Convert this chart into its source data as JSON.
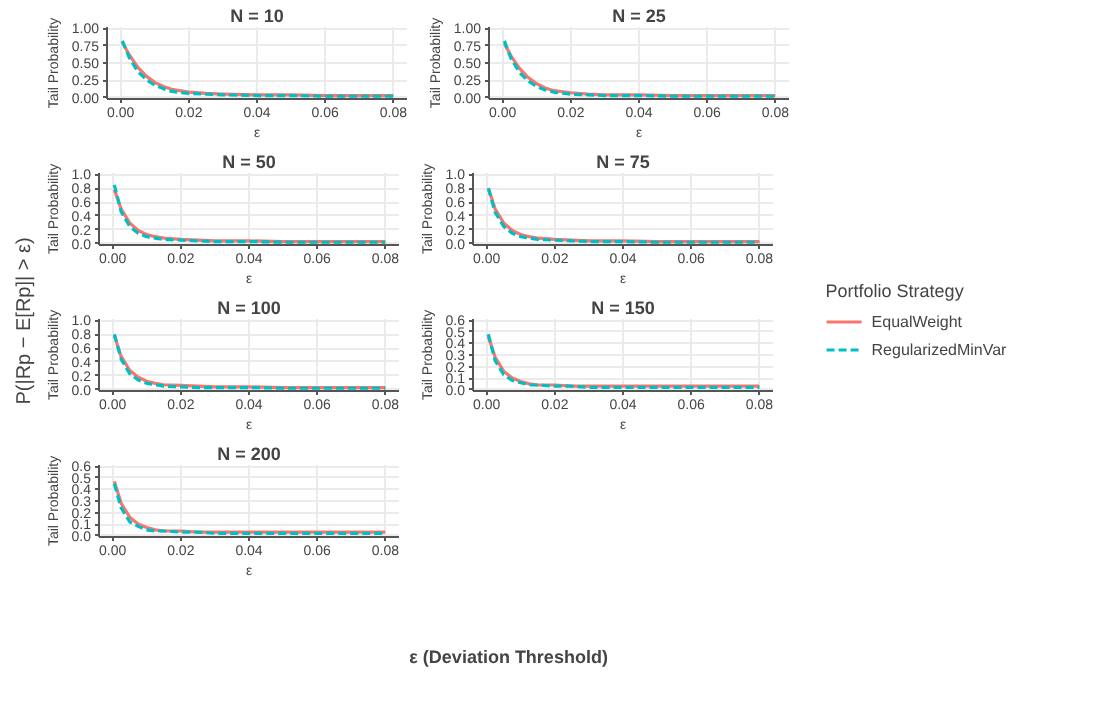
{
  "chart_data": [
    {
      "type": "line",
      "title": "N = 10",
      "xlabel": "ε",
      "ylabel": "Tail Probability",
      "x": [
        0.0005,
        0.0025,
        0.005,
        0.0075,
        0.01,
        0.0125,
        0.015,
        0.02,
        0.025,
        0.03,
        0.04,
        0.05,
        0.06,
        0.07,
        0.08
      ],
      "xlim": [
        -0.004,
        0.084
      ],
      "ylim": [
        -0.02,
        1.02
      ],
      "xticks": [
        {
          "value": 0,
          "label": "0.00"
        },
        {
          "value": 0.02,
          "label": "0.02"
        },
        {
          "value": 0.04,
          "label": "0.04"
        },
        {
          "value": 0.06,
          "label": "0.06"
        },
        {
          "value": 0.08,
          "label": "0.08"
        }
      ],
      "yticks": [
        {
          "value": 0,
          "label": "0.00"
        },
        {
          "value": 0.25,
          "label": "0.25"
        },
        {
          "value": 0.5,
          "label": "0.50"
        },
        {
          "value": 0.75,
          "label": "0.75"
        },
        {
          "value": 1,
          "label": "1.00"
        }
      ],
      "grid": true,
      "series": [
        {
          "color": "#f8766d",
          "line_style": "solid",
          "values": [
            0.8,
            0.62,
            0.44,
            0.31,
            0.22,
            0.16,
            0.12,
            0.08,
            0.06,
            0.05,
            0.04,
            0.04,
            0.03,
            0.03,
            0.03
          ]
        },
        {
          "color": "#00bfc4",
          "line_style": "dashed",
          "values": [
            0.82,
            0.58,
            0.38,
            0.26,
            0.18,
            0.13,
            0.09,
            0.06,
            0.05,
            0.04,
            0.03,
            0.03,
            0.02,
            0.02,
            0.02
          ]
        }
      ]
    },
    {
      "type": "line",
      "title": "N = 25",
      "xlabel": "ε",
      "ylabel": "Tail Probability",
      "x": [
        0.0005,
        0.0025,
        0.005,
        0.0075,
        0.01,
        0.0125,
        0.015,
        0.02,
        0.025,
        0.03,
        0.04,
        0.05,
        0.06,
        0.07,
        0.08
      ],
      "xlim": [
        -0.004,
        0.084
      ],
      "ylim": [
        -0.02,
        1.02
      ],
      "xticks": [
        {
          "value": 0,
          "label": "0.00"
        },
        {
          "value": 0.02,
          "label": "0.02"
        },
        {
          "value": 0.04,
          "label": "0.04"
        },
        {
          "value": 0.06,
          "label": "0.06"
        },
        {
          "value": 0.08,
          "label": "0.08"
        }
      ],
      "yticks": [
        {
          "value": 0,
          "label": "0.00"
        },
        {
          "value": 0.25,
          "label": "0.25"
        },
        {
          "value": 0.5,
          "label": "0.50"
        },
        {
          "value": 0.75,
          "label": "0.75"
        },
        {
          "value": 1,
          "label": "1.00"
        }
      ],
      "grid": true,
      "series": [
        {
          "color": "#f8766d",
          "line_style": "solid",
          "values": [
            0.78,
            0.6,
            0.42,
            0.29,
            0.2,
            0.14,
            0.1,
            0.07,
            0.05,
            0.04,
            0.04,
            0.03,
            0.03,
            0.03,
            0.03
          ]
        },
        {
          "color": "#00bfc4",
          "line_style": "dashed",
          "values": [
            0.82,
            0.56,
            0.36,
            0.24,
            0.16,
            0.11,
            0.08,
            0.05,
            0.04,
            0.03,
            0.03,
            0.02,
            0.02,
            0.02,
            0.02
          ]
        }
      ]
    },
    {
      "type": "line",
      "title": "N = 50",
      "xlabel": "ε",
      "ylabel": "Tail Probability",
      "x": [
        0.0005,
        0.0025,
        0.005,
        0.0075,
        0.01,
        0.0125,
        0.015,
        0.02,
        0.025,
        0.03,
        0.04,
        0.05,
        0.06,
        0.07,
        0.08
      ],
      "xlim": [
        -0.004,
        0.084
      ],
      "ylim": [
        -0.02,
        1.02
      ],
      "xticks": [
        {
          "value": 0,
          "label": "0.00"
        },
        {
          "value": 0.02,
          "label": "0.02"
        },
        {
          "value": 0.04,
          "label": "0.04"
        },
        {
          "value": 0.06,
          "label": "0.06"
        },
        {
          "value": 0.08,
          "label": "0.08"
        }
      ],
      "yticks": [
        {
          "value": 0,
          "label": "0.0"
        },
        {
          "value": 0.2,
          "label": "0.2"
        },
        {
          "value": 0.4,
          "label": "0.4"
        },
        {
          "value": 0.6,
          "label": "0.6"
        },
        {
          "value": 0.8,
          "label": "0.8"
        },
        {
          "value": 1,
          "label": "1.0"
        }
      ],
      "grid": true,
      "series": [
        {
          "color": "#f8766d",
          "line_style": "solid",
          "values": [
            0.78,
            0.5,
            0.3,
            0.19,
            0.13,
            0.1,
            0.08,
            0.06,
            0.05,
            0.04,
            0.04,
            0.03,
            0.03,
            0.03,
            0.03
          ]
        },
        {
          "color": "#00bfc4",
          "line_style": "dashed",
          "values": [
            0.85,
            0.46,
            0.25,
            0.15,
            0.1,
            0.08,
            0.06,
            0.05,
            0.04,
            0.03,
            0.03,
            0.02,
            0.02,
            0.02,
            0.02
          ]
        }
      ]
    },
    {
      "type": "line",
      "title": "N = 75",
      "xlabel": "ε",
      "ylabel": "Tail Probability",
      "legend": "right",
      "legend_title": "Portfolio Strategy",
      "x": [
        0.0005,
        0.0025,
        0.005,
        0.0075,
        0.01,
        0.0125,
        0.015,
        0.02,
        0.025,
        0.03,
        0.04,
        0.05,
        0.06,
        0.07,
        0.08
      ],
      "xlim": [
        -0.004,
        0.084
      ],
      "ylim": [
        -0.02,
        1.02
      ],
      "xticks": [
        {
          "value": 0,
          "label": "0.00"
        },
        {
          "value": 0.02,
          "label": "0.02"
        },
        {
          "value": 0.04,
          "label": "0.04"
        },
        {
          "value": 0.06,
          "label": "0.06"
        },
        {
          "value": 0.08,
          "label": "0.08"
        }
      ],
      "yticks": [
        {
          "value": 0,
          "label": "0.0"
        },
        {
          "value": 0.2,
          "label": "0.2"
        },
        {
          "value": 0.4,
          "label": "0.4"
        },
        {
          "value": 0.6,
          "label": "0.6"
        },
        {
          "value": 0.8,
          "label": "0.8"
        },
        {
          "value": 1,
          "label": "1.0"
        }
      ],
      "grid": true,
      "series": [
        {
          "name": "EqualWeight",
          "color": "#f8766d",
          "line_style": "solid",
          "values": [
            0.8,
            0.5,
            0.3,
            0.19,
            0.13,
            0.1,
            0.08,
            0.06,
            0.05,
            0.04,
            0.04,
            0.03,
            0.03,
            0.03,
            0.03
          ]
        },
        {
          "name": "RegularizedMinVar",
          "color": "#00bfc4",
          "line_style": "dashed",
          "values": [
            0.8,
            0.45,
            0.25,
            0.15,
            0.1,
            0.08,
            0.06,
            0.05,
            0.04,
            0.03,
            0.03,
            0.02,
            0.02,
            0.02,
            0.02
          ]
        }
      ]
    },
    {
      "type": "line",
      "title": "N = 100",
      "xlabel": "ε",
      "ylabel": "Tail Probability",
      "x": [
        0.0005,
        0.0025,
        0.005,
        0.0075,
        0.01,
        0.0125,
        0.015,
        0.02,
        0.025,
        0.03,
        0.04,
        0.05,
        0.06,
        0.07,
        0.08
      ],
      "xlim": [
        -0.004,
        0.084
      ],
      "ylim": [
        -0.02,
        1.02
      ],
      "xticks": [
        {
          "value": 0,
          "label": "0.00"
        },
        {
          "value": 0.02,
          "label": "0.02"
        },
        {
          "value": 0.04,
          "label": "0.04"
        },
        {
          "value": 0.06,
          "label": "0.06"
        },
        {
          "value": 0.08,
          "label": "0.08"
        }
      ],
      "yticks": [
        {
          "value": 0,
          "label": "0.0"
        },
        {
          "value": 0.2,
          "label": "0.2"
        },
        {
          "value": 0.4,
          "label": "0.4"
        },
        {
          "value": 0.6,
          "label": "0.6"
        },
        {
          "value": 0.8,
          "label": "0.8"
        },
        {
          "value": 1,
          "label": "1.0"
        }
      ],
      "grid": true,
      "series": [
        {
          "color": "#f8766d",
          "line_style": "solid",
          "values": [
            0.78,
            0.48,
            0.28,
            0.18,
            0.12,
            0.09,
            0.07,
            0.06,
            0.05,
            0.04,
            0.04,
            0.03,
            0.03,
            0.03,
            0.03
          ]
        },
        {
          "color": "#00bfc4",
          "line_style": "dashed",
          "values": [
            0.8,
            0.44,
            0.23,
            0.14,
            0.09,
            0.07,
            0.05,
            0.04,
            0.03,
            0.03,
            0.03,
            0.02,
            0.02,
            0.02,
            0.02
          ]
        }
      ]
    },
    {
      "type": "line",
      "title": "N = 150",
      "xlabel": "ε",
      "ylabel": "Tail Probability",
      "x": [
        0.0005,
        0.0025,
        0.005,
        0.0075,
        0.01,
        0.0125,
        0.015,
        0.02,
        0.025,
        0.03,
        0.04,
        0.05,
        0.06,
        0.07,
        0.08
      ],
      "xlim": [
        -0.004,
        0.084
      ],
      "ylim": [
        -0.012,
        0.612
      ],
      "xticks": [
        {
          "value": 0,
          "label": "0.00"
        },
        {
          "value": 0.02,
          "label": "0.02"
        },
        {
          "value": 0.04,
          "label": "0.04"
        },
        {
          "value": 0.06,
          "label": "0.06"
        },
        {
          "value": 0.08,
          "label": "0.08"
        }
      ],
      "yticks": [
        {
          "value": 0,
          "label": "0.0"
        },
        {
          "value": 0.1,
          "label": "0.1"
        },
        {
          "value": 0.2,
          "label": "0.2"
        },
        {
          "value": 0.3,
          "label": "0.3"
        },
        {
          "value": 0.4,
          "label": "0.4"
        },
        {
          "value": 0.5,
          "label": "0.5"
        },
        {
          "value": 0.6,
          "label": "0.6"
        }
      ],
      "grid": true,
      "series": [
        {
          "color": "#f8766d",
          "line_style": "solid",
          "values": [
            0.46,
            0.28,
            0.16,
            0.1,
            0.07,
            0.05,
            0.04,
            0.04,
            0.03,
            0.03,
            0.03,
            0.03,
            0.03,
            0.03,
            0.03
          ]
        },
        {
          "color": "#00bfc4",
          "line_style": "dashed",
          "values": [
            0.48,
            0.25,
            0.13,
            0.08,
            0.06,
            0.04,
            0.04,
            0.03,
            0.03,
            0.02,
            0.02,
            0.02,
            0.02,
            0.02,
            0.02
          ]
        }
      ]
    },
    {
      "type": "line",
      "title": "N = 200",
      "xlabel": "ε",
      "ylabel": "Tail Probability",
      "x": [
        0.0005,
        0.0025,
        0.005,
        0.0075,
        0.01,
        0.0125,
        0.015,
        0.02,
        0.025,
        0.03,
        0.04,
        0.05,
        0.06,
        0.07,
        0.08
      ],
      "xlim": [
        -0.004,
        0.084
      ],
      "ylim": [
        -0.012,
        0.612
      ],
      "xticks": [
        {
          "value": 0,
          "label": "0.00"
        },
        {
          "value": 0.02,
          "label": "0.02"
        },
        {
          "value": 0.04,
          "label": "0.04"
        },
        {
          "value": 0.06,
          "label": "0.06"
        },
        {
          "value": 0.08,
          "label": "0.08"
        }
      ],
      "yticks": [
        {
          "value": 0,
          "label": "0.0"
        },
        {
          "value": 0.1,
          "label": "0.1"
        },
        {
          "value": 0.2,
          "label": "0.2"
        },
        {
          "value": 0.3,
          "label": "0.3"
        },
        {
          "value": 0.4,
          "label": "0.4"
        },
        {
          "value": 0.5,
          "label": "0.5"
        },
        {
          "value": 0.6,
          "label": "0.6"
        }
      ],
      "grid": true,
      "series": [
        {
          "color": "#f8766d",
          "line_style": "solid",
          "values": [
            0.47,
            0.28,
            0.16,
            0.1,
            0.07,
            0.05,
            0.04,
            0.04,
            0.03,
            0.03,
            0.03,
            0.03,
            0.03,
            0.03,
            0.03
          ]
        },
        {
          "color": "#00bfc4",
          "line_style": "dashed",
          "values": [
            0.45,
            0.24,
            0.12,
            0.08,
            0.05,
            0.04,
            0.04,
            0.03,
            0.03,
            0.02,
            0.02,
            0.02,
            0.02,
            0.02,
            0.02
          ]
        }
      ]
    },
    {
      "type": "other",
      "xlabel": "ε (Deviation Threshold)",
      "ylabel": "P(|Rp − E[Rp]| > ε)"
    }
  ]
}
